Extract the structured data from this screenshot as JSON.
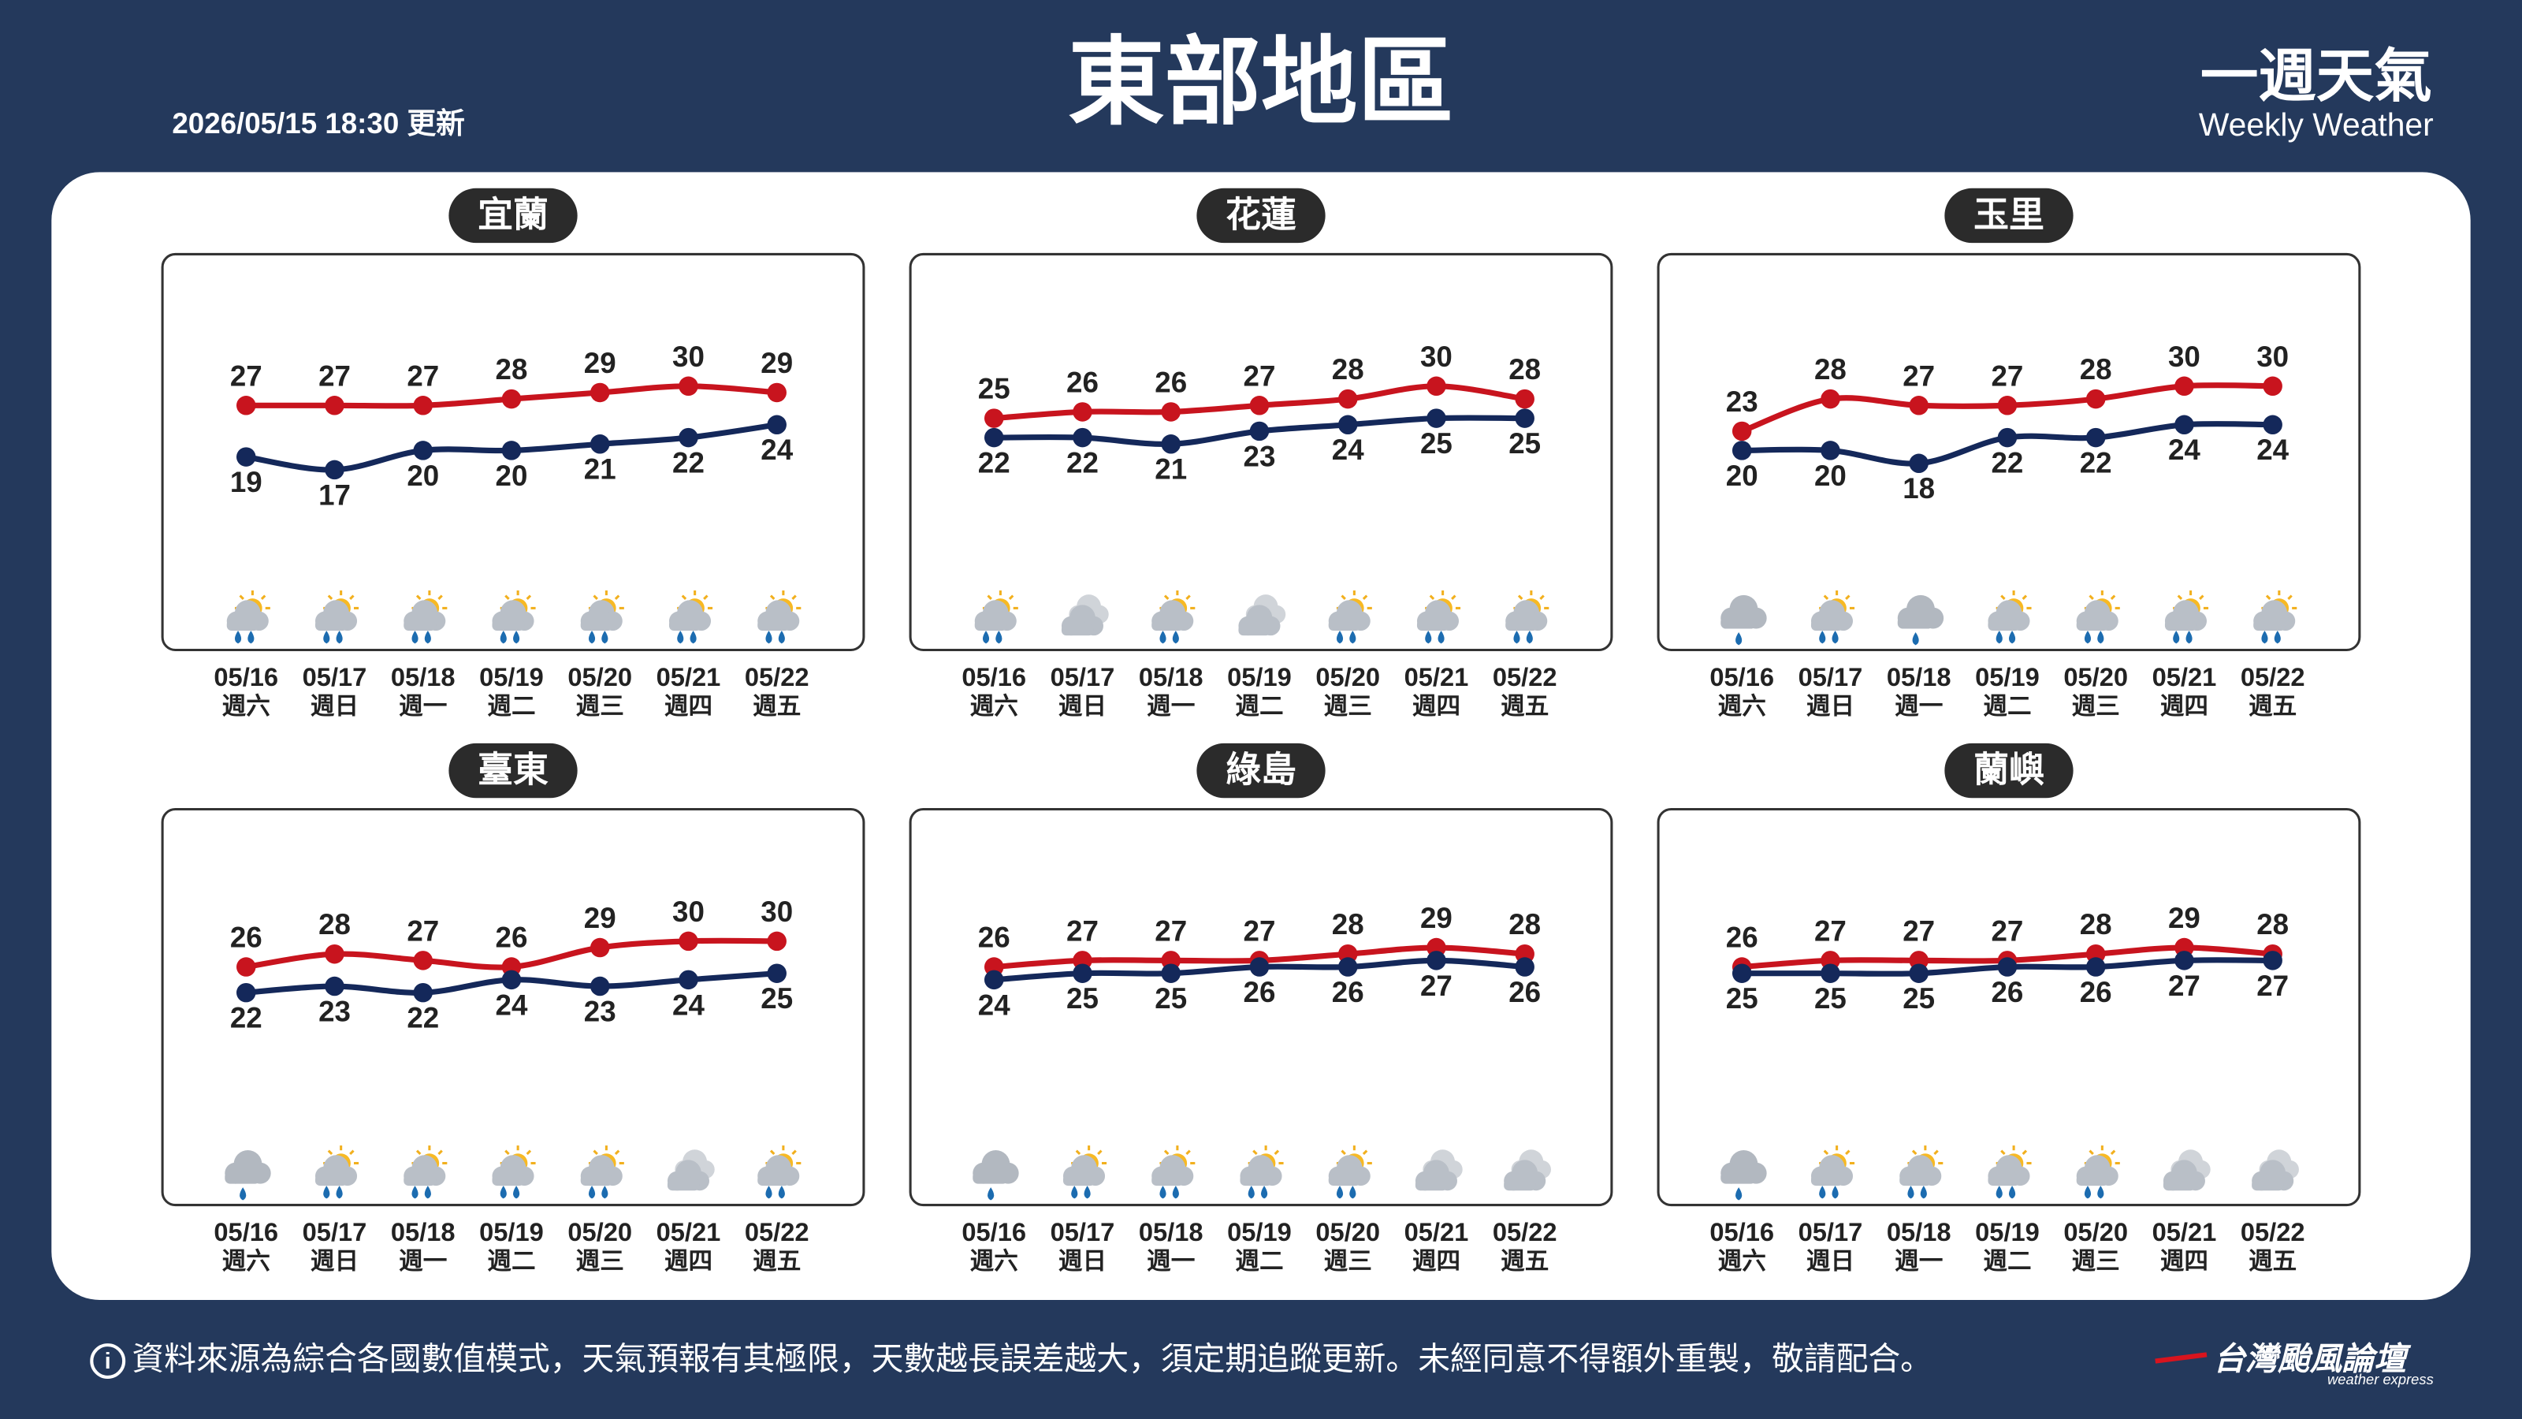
{
  "header": {
    "title": "東部地區",
    "updated": "2026/05/15 18:30 更新",
    "brand_title": "一週天氣",
    "brand_subtitle": "Weekly Weather"
  },
  "chart_data": [
    {
      "type": "line",
      "title": "宜蘭",
      "categories": [
        "05/16",
        "05/17",
        "05/18",
        "05/19",
        "05/20",
        "05/21",
        "05/22"
      ],
      "weekdays": [
        "週六",
        "週日",
        "週一",
        "週二",
        "週三",
        "週四",
        "週五"
      ],
      "ylim": [
        0,
        50
      ],
      "series": [
        {
          "color": "#c8141e",
          "values": [
            27,
            27,
            27,
            28,
            29,
            30,
            29
          ]
        },
        {
          "color": "#14285a",
          "values": [
            19,
            17,
            20,
            20,
            21,
            22,
            24
          ]
        }
      ],
      "icons": [
        "sun-cloud-rain",
        "sun-cloud-rain",
        "sun-cloud-rain",
        "sun-cloud-rain",
        "sun-cloud-rain",
        "sun-cloud-rain",
        "sun-cloud-rain"
      ]
    },
    {
      "type": "line",
      "title": "花蓮",
      "categories": [
        "05/16",
        "05/17",
        "05/18",
        "05/19",
        "05/20",
        "05/21",
        "05/22"
      ],
      "weekdays": [
        "週六",
        "週日",
        "週一",
        "週二",
        "週三",
        "週四",
        "週五"
      ],
      "ylim": [
        0,
        50
      ],
      "series": [
        {
          "color": "#c8141e",
          "values": [
            25,
            26,
            26,
            27,
            28,
            30,
            28
          ]
        },
        {
          "color": "#14285a",
          "values": [
            22,
            22,
            21,
            23,
            24,
            25,
            25
          ]
        }
      ],
      "icons": [
        "sun-cloud-rain",
        "cloudy",
        "sun-cloud-rain",
        "cloudy",
        "sun-cloud-rain",
        "sun-cloud-rain",
        "sun-cloud-rain"
      ]
    },
    {
      "type": "line",
      "title": "玉里",
      "categories": [
        "05/16",
        "05/17",
        "05/18",
        "05/19",
        "05/20",
        "05/21",
        "05/22"
      ],
      "weekdays": [
        "週六",
        "週日",
        "週一",
        "週二",
        "週三",
        "週四",
        "週五"
      ],
      "ylim": [
        0,
        50
      ],
      "series": [
        {
          "color": "#c8141e",
          "values": [
            23,
            28,
            27,
            27,
            28,
            30,
            30
          ]
        },
        {
          "color": "#14285a",
          "values": [
            20,
            20,
            18,
            22,
            22,
            24,
            24
          ]
        }
      ],
      "icons": [
        "cloud-rain",
        "sun-cloud-rain",
        "cloud-rain",
        "sun-cloud-rain",
        "sun-cloud-rain",
        "sun-cloud-rain",
        "sun-cloud-rain"
      ]
    },
    {
      "type": "line",
      "title": "臺東",
      "categories": [
        "05/16",
        "05/17",
        "05/18",
        "05/19",
        "05/20",
        "05/21",
        "05/22"
      ],
      "weekdays": [
        "週六",
        "週日",
        "週一",
        "週二",
        "週三",
        "週四",
        "週五"
      ],
      "ylim": [
        0,
        50
      ],
      "series": [
        {
          "color": "#c8141e",
          "values": [
            26,
            28,
            27,
            26,
            29,
            30,
            30
          ]
        },
        {
          "color": "#14285a",
          "values": [
            22,
            23,
            22,
            24,
            23,
            24,
            25
          ]
        }
      ],
      "icons": [
        "cloud-rain",
        "sun-cloud-rain",
        "sun-cloud-rain",
        "sun-cloud-rain",
        "sun-cloud-rain",
        "cloudy",
        "sun-cloud-rain"
      ]
    },
    {
      "type": "line",
      "title": "綠島",
      "categories": [
        "05/16",
        "05/17",
        "05/18",
        "05/19",
        "05/20",
        "05/21",
        "05/22"
      ],
      "weekdays": [
        "週六",
        "週日",
        "週一",
        "週二",
        "週三",
        "週四",
        "週五"
      ],
      "ylim": [
        0,
        50
      ],
      "series": [
        {
          "color": "#c8141e",
          "values": [
            26,
            27,
            27,
            27,
            28,
            29,
            28
          ]
        },
        {
          "color": "#14285a",
          "values": [
            24,
            25,
            25,
            26,
            26,
            27,
            26
          ]
        }
      ],
      "icons": [
        "cloud-rain",
        "sun-cloud-rain",
        "sun-cloud-rain",
        "sun-cloud-rain",
        "sun-cloud-rain",
        "cloudy",
        "cloudy"
      ]
    },
    {
      "type": "line",
      "title": "蘭嶼",
      "categories": [
        "05/16",
        "05/17",
        "05/18",
        "05/19",
        "05/20",
        "05/21",
        "05/22"
      ],
      "weekdays": [
        "週六",
        "週日",
        "週一",
        "週二",
        "週三",
        "週四",
        "週五"
      ],
      "ylim": [
        0,
        50
      ],
      "series": [
        {
          "color": "#c8141e",
          "values": [
            26,
            27,
            27,
            27,
            28,
            29,
            28
          ]
        },
        {
          "color": "#14285a",
          "values": [
            25,
            25,
            25,
            26,
            26,
            27,
            27
          ]
        }
      ],
      "icons": [
        "cloud-rain",
        "sun-cloud-rain",
        "sun-cloud-rain",
        "sun-cloud-rain",
        "sun-cloud-rain",
        "cloudy",
        "cloudy"
      ]
    }
  ],
  "footer": {
    "notice": "資料來源為綜合各國數值模式，天氣預報有其極限，天數越長誤差越大，須定期追蹤更新。未經同意不得額外重製，敬請配合。",
    "logo": "台灣颱風論壇",
    "logo_sub": "weather express"
  }
}
